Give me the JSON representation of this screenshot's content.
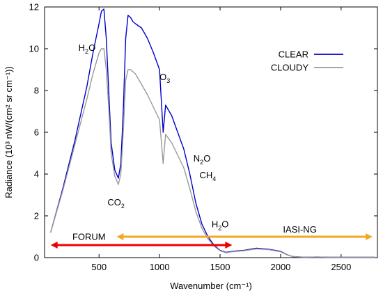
{
  "chart_data": {
    "type": "line",
    "title": "",
    "xlabel": "Wavenumber (cm⁻¹)",
    "ylabel": "Radiance (10³ nW/(cm² sr cm⁻¹))",
    "xlim": [
      50,
      2800
    ],
    "ylim": [
      0,
      12
    ],
    "xticks": [
      500,
      1000,
      1500,
      2000,
      2500
    ],
    "yticks": [
      0,
      2,
      4,
      6,
      8,
      10,
      12
    ],
    "grid": false,
    "legend_position": "top-right",
    "series": [
      {
        "name": "CLEAR",
        "color": "#0000cc",
        "x": [
          100,
          200,
          300,
          400,
          450,
          500,
          520,
          540,
          560,
          580,
          600,
          630,
          660,
          680,
          700,
          720,
          740,
          760,
          780,
          800,
          850,
          900,
          950,
          1000,
          1030,
          1050,
          1100,
          1150,
          1200,
          1250,
          1300,
          1350,
          1400,
          1450,
          1500,
          1550,
          1600,
          1700,
          1800,
          1900,
          2000,
          2050,
          2100,
          2200,
          2300,
          2400,
          2500,
          2600,
          2700,
          2780
        ],
        "y": [
          1.2,
          3.3,
          5.6,
          8.2,
          9.8,
          11.2,
          11.8,
          11.9,
          10.5,
          8.0,
          5.5,
          4.2,
          3.8,
          4.5,
          7.0,
          10.5,
          11.6,
          11.5,
          11.3,
          11.2,
          11.0,
          10.5,
          9.8,
          9.0,
          6.0,
          7.3,
          6.8,
          6.0,
          5.2,
          4.0,
          2.6,
          1.6,
          1.0,
          0.6,
          0.35,
          0.25,
          0.3,
          0.35,
          0.45,
          0.4,
          0.3,
          0.15,
          0.05,
          0.02,
          0.03,
          0.02,
          0.02,
          0.02,
          0.02,
          0.02
        ]
      },
      {
        "name": "CLOUDY",
        "color": "#999999",
        "x": [
          100,
          200,
          300,
          400,
          450,
          500,
          520,
          540,
          560,
          580,
          600,
          630,
          660,
          680,
          700,
          720,
          740,
          760,
          780,
          800,
          850,
          900,
          950,
          1000,
          1030,
          1050,
          1100,
          1150,
          1200,
          1250,
          1300,
          1350,
          1400,
          1450,
          1500,
          1550,
          1600,
          1700,
          1800,
          1900,
          2000,
          2050,
          2100,
          2200,
          2300,
          2400,
          2500,
          2600,
          2700,
          2780
        ],
        "y": [
          1.2,
          3.2,
          5.4,
          7.6,
          8.8,
          9.8,
          10.0,
          10.0,
          9.0,
          7.2,
          5.0,
          3.9,
          3.5,
          4.0,
          6.0,
          8.5,
          9.0,
          9.0,
          8.9,
          8.8,
          8.3,
          7.8,
          7.2,
          6.6,
          4.5,
          5.9,
          5.5,
          4.9,
          4.3,
          3.3,
          2.2,
          1.4,
          0.9,
          0.55,
          0.33,
          0.23,
          0.28,
          0.33,
          0.42,
          0.38,
          0.28,
          0.14,
          0.05,
          0.02,
          0.03,
          0.02,
          0.02,
          0.02,
          0.02,
          0.02
        ]
      }
    ],
    "annotations": [
      {
        "id": "h2o_top",
        "pre": "H",
        "sub": "2",
        "post": "O",
        "x": 330,
        "y": 9.9
      },
      {
        "id": "o3",
        "pre": "O",
        "sub": "3",
        "post": "",
        "x": 1000,
        "y": 8.5
      },
      {
        "id": "n2o",
        "pre": "N",
        "sub": "2",
        "post": "O",
        "x": 1280,
        "y": 4.6
      },
      {
        "id": "ch4",
        "pre": "CH",
        "sub": "4",
        "post": "",
        "x": 1330,
        "y": 3.8
      },
      {
        "id": "co2",
        "pre": "CO",
        "sub": "2",
        "post": "",
        "x": 570,
        "y": 2.5
      },
      {
        "id": "h2o_low",
        "pre": "H",
        "sub": "2",
        "post": "O",
        "x": 1430,
        "y": 1.45
      }
    ],
    "ranges": [
      {
        "name": "FORUM",
        "from": 100,
        "to": 1600,
        "color": "#ee0000",
        "y": 0.6,
        "label_x": 280,
        "label_y": 0.85
      },
      {
        "name": "IASI-NG",
        "from": 645,
        "to": 2760,
        "color": "#f5a623",
        "y": 1.0,
        "label_x": 2020,
        "label_y": 1.2
      }
    ]
  }
}
